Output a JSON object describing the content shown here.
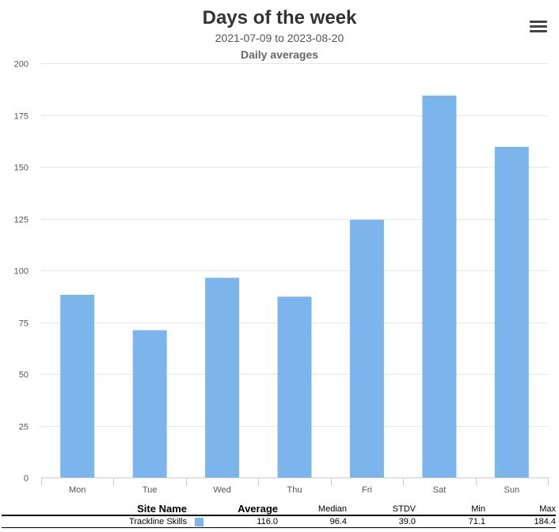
{
  "chart_data": {
    "type": "bar",
    "title": "Days of the week",
    "subtitle": "2021-07-09 to 2023-08-20",
    "xlabel": "",
    "ylabel": "Daily averages",
    "categories": [
      "Mon",
      "Tue",
      "Wed",
      "Thu",
      "Fri",
      "Sat",
      "Sun"
    ],
    "series": [
      {
        "name": "Trackline Skills",
        "values": [
          88.2,
          71.1,
          96.4,
          87.3,
          124.4,
          184.4,
          159.6
        ]
      }
    ],
    "ylim": [
      0,
      200
    ],
    "yticks": [
      0,
      25,
      50,
      75,
      100,
      125,
      150,
      175,
      200
    ],
    "grid": true,
    "colors": {
      "bar": "#7cb5ec"
    }
  },
  "summary_table": {
    "headers": {
      "site": "Site Name",
      "average": "Average",
      "median": "Median",
      "stdv": "STDV",
      "min": "Min",
      "max": "Max"
    },
    "rows": [
      {
        "site": "Trackline Skills",
        "color": "#7cb5ec",
        "average": "116.0",
        "median": "96.4",
        "stdv": "39.0",
        "min": "71.1",
        "max": "184.4"
      }
    ]
  }
}
